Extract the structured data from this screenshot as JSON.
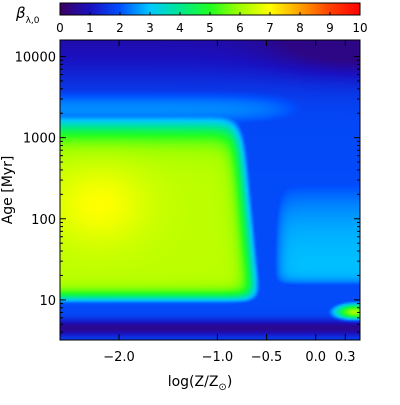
{
  "chart_data": {
    "type": "heatmap",
    "title": "",
    "colorbar": {
      "label": "β",
      "label_subscript": "λ,0",
      "range": [
        0,
        10
      ],
      "ticks": [
        0,
        1,
        2,
        3,
        4,
        5,
        6,
        7,
        8,
        9,
        10
      ],
      "tick_labels": [
        "0",
        "1",
        "2",
        "3",
        "4",
        "5",
        "6",
        "7",
        "8",
        "9",
        "10"
      ],
      "palette": [
        "#3a0060",
        "#1a10c0",
        "#0050ff",
        "#00c8ff",
        "#00e890",
        "#20ff20",
        "#a0ff00",
        "#ffff00",
        "#ffa000",
        "#ff4000",
        "#ff0000"
      ],
      "placement": "top"
    },
    "x_axis": {
      "label": "log(Z/Z",
      "label_subscript": "⊙",
      "label_close": ")",
      "range": [
        -2.6,
        0.45
      ],
      "ticks": [
        -2.0,
        -1.0,
        -0.5,
        0.0,
        0.3
      ],
      "tick_labels": [
        "−2.0",
        "−1.0",
        "−0.5",
        "0.0",
        "0.3"
      ]
    },
    "y_axis": {
      "label": "Age [Myr]",
      "scale": "log",
      "range": [
        3.2,
        16000
      ],
      "ticks": [
        10,
        100,
        1000,
        10000
      ],
      "tick_labels": [
        "10",
        "100",
        "1000",
        "10000"
      ]
    },
    "features": {
      "peak_value": 7.0,
      "peak_log_z": -2.2,
      "peak_age_myr": 150,
      "plateau_value": 6.3,
      "outer_value": 0.4,
      "upper_band_value": 2.5,
      "lower_band_age_myr": 4.5,
      "lower_band_value": 1.6,
      "metal_rich_young_value": 6.2,
      "metal_rich_young_age_myr": 7
    }
  }
}
